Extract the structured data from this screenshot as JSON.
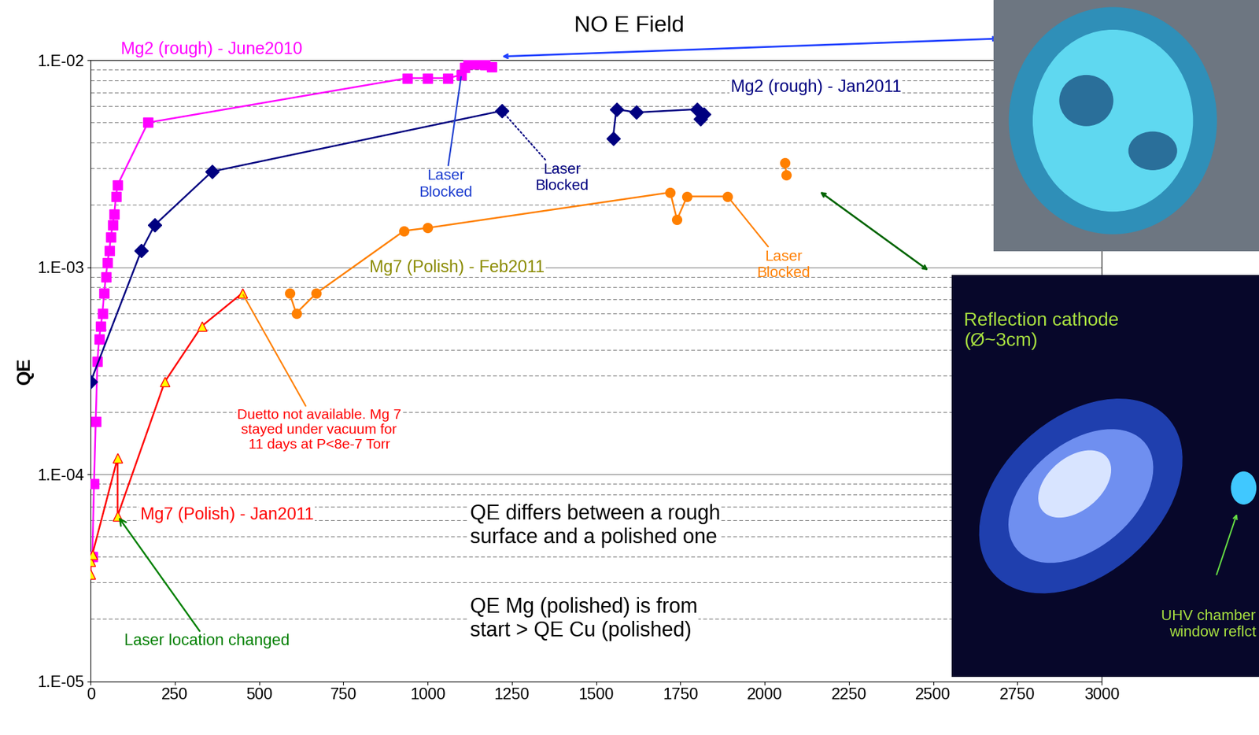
{
  "chart_data": {
    "type": "line",
    "y_label": "QE",
    "log": "y",
    "grid": true,
    "xlim": [
      0,
      3000
    ],
    "xticks": [
      0,
      250,
      500,
      750,
      1000,
      1250,
      1500,
      1750,
      2000,
      2250,
      2500,
      2750,
      3000
    ],
    "ylim": [
      1e-05,
      0.01
    ],
    "yticks": [
      {
        "value": 1e-05,
        "label": "1.E-05"
      },
      {
        "value": 0.0001,
        "label": "1.E-04"
      },
      {
        "value": 0.001,
        "label": "1.E-03"
      },
      {
        "value": 0.01,
        "label": "1.E-02"
      }
    ],
    "series": [
      {
        "name": "Mg2 (rough) - June2010",
        "color": "#ff00ff",
        "marker": "square",
        "line_style": "solid",
        "x": [
          0,
          5,
          10,
          15,
          20,
          25,
          30,
          35,
          40,
          45,
          50,
          55,
          60,
          65,
          70,
          75,
          80,
          170,
          940,
          1000,
          1060,
          1100,
          1110,
          1120,
          1130,
          1140,
          1170,
          1190
        ],
        "values": [
          4e-05,
          4e-05,
          9e-05,
          0.00018,
          0.00035,
          0.00045,
          0.00052,
          0.0006,
          0.00075,
          0.0009,
          0.00105,
          0.0012,
          0.0014,
          0.0016,
          0.0018,
          0.0022,
          0.0025,
          0.005,
          0.0082,
          0.0082,
          0.0082,
          0.0085,
          0.0092,
          0.0098,
          0.0099,
          0.0096,
          0.0095,
          0.0093
        ]
      },
      {
        "name": "Mg2 (rough) - Jan2011",
        "color": "#000080",
        "marker": "diamond",
        "line_style": "solid",
        "x": [
          0,
          150,
          190,
          360,
          1220,
          null,
          1550,
          1560,
          1620,
          1800,
          1810,
          1820
        ],
        "values": [
          0.00028,
          0.0012,
          0.0016,
          0.0029,
          0.0057,
          null,
          0.0042,
          0.0058,
          0.0056,
          0.0058,
          0.0052,
          0.0055
        ]
      },
      {
        "name": "Mg7 (Polish) - Feb2011",
        "color": "#ff8000",
        "marker": "circle",
        "line_style": "solid",
        "x": [
          590,
          610,
          670,
          930,
          1000,
          1720,
          1740,
          1770,
          1890,
          null,
          2060,
          2065
        ],
        "values": [
          0.00075,
          0.0006,
          0.00075,
          0.0015,
          0.00155,
          0.0023,
          0.0017,
          0.0022,
          0.0022,
          null,
          0.0032,
          0.0028
        ]
      },
      {
        "name": "Mg7 (Polish) - Jan2011",
        "color": "#ff0000",
        "marker": "triangle",
        "line_style": "solid",
        "x": [
          0,
          0,
          5,
          80,
          80,
          220,
          330,
          450
        ],
        "values": [
          3.3e-05,
          3.8e-05,
          4.1e-05,
          0.00012,
          6.3e-05,
          0.00028,
          0.00052,
          0.00075
        ]
      }
    ],
    "annotations": [
      "NO E Field",
      "Laser\nBlocked",
      "Laser\nBlocked",
      "Laser\nBlocked",
      "Duetto not available. Mg 7\nstayed under vacuum for\n11 days at P<8e-7 Torr",
      "Laser location changed",
      "QE differs between a rough\nsurface and a polished one",
      "QE Mg (polished) is from\nstart > QE Cu (polished)",
      "Reflection cathode\n(Ø~3cm)",
      "UHV chamber\nwindow reflct"
    ]
  }
}
